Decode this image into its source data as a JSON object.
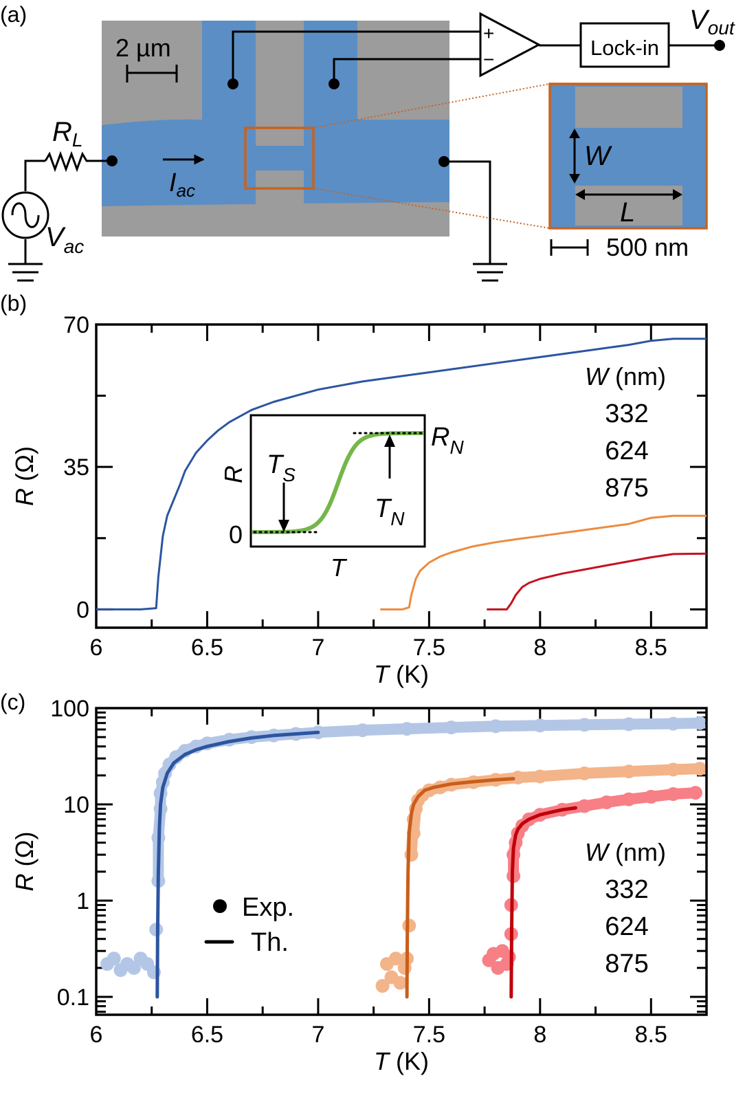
{
  "panel_labels": {
    "a": "(a)",
    "b": "(b)",
    "c": "(c)"
  },
  "colors": {
    "w332": "#2c55a0",
    "w624": "#ee8a3d",
    "w875": "#c4121f",
    "w332_exp": "#b3c6e6",
    "w624_exp": "#f3b489",
    "w875_exp": "#f77f86",
    "w624_th": "#c95e1a",
    "w875_th": "#c0000a",
    "sem_blue": "#5b8ec4",
    "sem_gray": "#9c9c9c",
    "highlight": "#c8621f",
    "inset_curve": "#6db33f"
  },
  "schematic": {
    "scale_bar_main": "2 µm",
    "scale_bar_inset": "500 nm",
    "resistor_label": "R",
    "resistor_sub": "L",
    "current_label": "I",
    "current_sub": "ac",
    "source_label": "V",
    "source_sub": "ac",
    "output_label": "V",
    "output_sub": "out",
    "lockin_label": "Lock-in",
    "amp_plus": "+",
    "amp_minus": "−",
    "width_label": "W",
    "length_label": "L"
  },
  "chart_data": [
    {
      "id": "b",
      "type": "line",
      "title": "",
      "xlabel": "T (K)",
      "xlabel_var": "T",
      "xlabel_unit": "(K)",
      "ylabel": "R (Ω)",
      "ylabel_var": "R",
      "ylabel_unit": "(Ω)",
      "xlim": [
        6,
        8.75
      ],
      "ylim": [
        -4.5,
        70
      ],
      "yscale": "linear",
      "xticks": [
        6,
        6.5,
        7,
        7.5,
        8,
        8.5
      ],
      "xtick_labels": [
        "6",
        "6.5",
        "7",
        "7.5",
        "8",
        "8.5"
      ],
      "xminor": [
        6.25,
        6.75,
        7.25,
        7.75,
        8.25
      ],
      "yticks": [
        0,
        35,
        70
      ],
      "ytick_labels": [
        "0",
        "35",
        "70"
      ],
      "yminor": [
        17.5,
        52.5
      ],
      "legend": {
        "title_var": "W",
        "title_unit": "(nm)",
        "placement": "right",
        "entries": [
          "332",
          "624",
          "875"
        ]
      },
      "series": [
        {
          "name": "332",
          "color_key": "w332",
          "x": [
            6.0,
            6.2,
            6.27,
            6.28,
            6.3,
            6.32,
            6.35,
            6.38,
            6.4,
            6.45,
            6.5,
            6.55,
            6.6,
            6.7,
            6.8,
            6.9,
            7.0,
            7.2,
            7.4,
            7.6,
            7.8,
            8.0,
            8.2,
            8.4,
            8.5,
            8.6,
            8.75
          ],
          "y": [
            0.0,
            0.0,
            0.3,
            8,
            18,
            23,
            27,
            31,
            34,
            38.5,
            41.5,
            44,
            46,
            49,
            51,
            52.5,
            54,
            56,
            57.5,
            59,
            60.5,
            62,
            63.5,
            65,
            66,
            66.5,
            66.5
          ]
        },
        {
          "name": "624",
          "color_key": "w624",
          "x": [
            7.28,
            7.38,
            7.41,
            7.42,
            7.44,
            7.46,
            7.5,
            7.55,
            7.6,
            7.7,
            7.8,
            7.9,
            8.0,
            8.2,
            8.4,
            8.5,
            8.6,
            8.75
          ],
          "y": [
            0.0,
            0.0,
            0.5,
            3.5,
            7.5,
            9.5,
            11.5,
            13,
            14,
            15.5,
            16.5,
            17.3,
            18,
            19.5,
            21,
            22.5,
            23,
            23
          ]
        },
        {
          "name": "875",
          "color_key": "w875",
          "x": [
            7.76,
            7.85,
            7.87,
            7.89,
            7.92,
            7.95,
            8.0,
            8.1,
            8.2,
            8.3,
            8.4,
            8.5,
            8.6,
            8.75
          ],
          "y": [
            0.0,
            0.0,
            1.5,
            3.5,
            5.5,
            6.5,
            7.5,
            8.8,
            9.8,
            10.8,
            11.8,
            12.8,
            13.6,
            13.7
          ]
        }
      ],
      "inset": {
        "xlabel": "T",
        "ylabel": "R",
        "zero_label": "0",
        "rn_label": "R",
        "rn_sub": "N",
        "ts_label": "T",
        "ts_sub": "S",
        "tn_label": "T",
        "tn_sub": "N",
        "curve": "sigmoid"
      }
    },
    {
      "id": "c",
      "type": "scatter",
      "title": "",
      "xlabel": "T (K)",
      "xlabel_var": "T",
      "xlabel_unit": "(K)",
      "ylabel": "R (Ω)",
      "ylabel_var": "R",
      "ylabel_unit": "(Ω)",
      "xlim": [
        6,
        8.75
      ],
      "ylim": [
        0.08,
        100
      ],
      "yscale": "log",
      "xticks": [
        6,
        6.5,
        7,
        7.5,
        8,
        8.5
      ],
      "xtick_labels": [
        "6",
        "6.5",
        "7",
        "7.5",
        "8",
        "8.5"
      ],
      "xminor": [
        6.25,
        6.75,
        7.25,
        7.75,
        8.25
      ],
      "yticks": [
        0.1,
        1,
        10,
        100
      ],
      "ytick_labels": [
        "0.1",
        "1",
        "10",
        "100"
      ],
      "legend": {
        "markers": [
          {
            "symbol": "dot",
            "label": "Exp."
          },
          {
            "symbol": "line",
            "label": "Th."
          }
        ],
        "title_var": "W",
        "title_unit": "(nm)",
        "placement": "lower-right",
        "entries": [
          "332",
          "624",
          "875"
        ]
      },
      "series": [
        {
          "name": "332 Exp.",
          "kind": "exp",
          "color_key": "w332_exp",
          "x": [
            6.05,
            6.08,
            6.11,
            6.14,
            6.17,
            6.2,
            6.23,
            6.26,
            6.27,
            6.28,
            6.28,
            6.29,
            6.29,
            6.3,
            6.31,
            6.33,
            6.36,
            6.4,
            6.45,
            6.5,
            6.6,
            6.7,
            6.8,
            6.9,
            7.0,
            7.2,
            7.4,
            7.6,
            7.8,
            8.0,
            8.2,
            8.4,
            8.6,
            8.72
          ],
          "y": [
            0.22,
            0.25,
            0.19,
            0.22,
            0.2,
            0.25,
            0.22,
            0.18,
            0.5,
            1.6,
            4.5,
            9,
            13,
            17,
            21,
            26,
            31,
            36,
            40,
            43,
            47,
            50,
            52,
            54,
            56,
            59,
            61,
            63,
            65,
            66,
            67,
            68,
            69,
            70
          ]
        },
        {
          "name": "332 Th.",
          "kind": "th",
          "color_key": "w332",
          "x": [
            6.275,
            6.277,
            6.28,
            6.285,
            6.29,
            6.3,
            6.32,
            6.35,
            6.4,
            6.45,
            6.5,
            6.6,
            6.7,
            6.8,
            6.9,
            7.0
          ],
          "y": [
            0.1,
            0.5,
            2,
            6,
            10,
            15,
            21,
            27,
            33,
            37,
            40,
            45,
            49,
            52,
            54,
            56
          ]
        },
        {
          "name": "624 Exp.",
          "kind": "exp",
          "color_key": "w624_exp",
          "x": [
            7.29,
            7.31,
            7.33,
            7.35,
            7.37,
            7.39,
            7.4,
            7.41,
            7.42,
            7.43,
            7.43,
            7.44,
            7.45,
            7.47,
            7.5,
            7.55,
            7.6,
            7.7,
            7.8,
            7.9,
            8.0,
            8.2,
            8.4,
            8.6,
            8.72
          ],
          "y": [
            0.13,
            0.22,
            0.16,
            0.25,
            0.14,
            0.2,
            0.25,
            0.55,
            3,
            7,
            5,
            9,
            11,
            12.5,
            14,
            15,
            16,
            17,
            18,
            19,
            19.5,
            21,
            22,
            23,
            23.5
          ]
        },
        {
          "name": "624 Th.",
          "kind": "th",
          "color_key": "w624_th",
          "x": [
            7.4,
            7.402,
            7.405,
            7.41,
            7.42,
            7.43,
            7.45,
            7.48,
            7.52,
            7.6,
            7.7,
            7.8,
            7.88
          ],
          "y": [
            0.1,
            0.5,
            2,
            5,
            8,
            10,
            12,
            14,
            15,
            16.3,
            17.2,
            18,
            18.5
          ]
        },
        {
          "name": "875 Exp.",
          "kind": "exp",
          "color_key": "w875_exp",
          "x": [
            7.77,
            7.79,
            7.81,
            7.83,
            7.85,
            7.86,
            7.87,
            7.87,
            7.88,
            7.88,
            7.89,
            7.9,
            7.92,
            7.95,
            8.0,
            8.1,
            8.2,
            8.3,
            8.4,
            8.5,
            8.6,
            8.7
          ],
          "y": [
            0.24,
            0.28,
            0.2,
            0.3,
            0.22,
            0.26,
            0.45,
            0.9,
            1.8,
            3,
            4,
            5,
            6,
            7,
            7.8,
            8.8,
            9.6,
            10.5,
            11.3,
            12,
            12.8,
            13.2
          ]
        },
        {
          "name": "875 Th.",
          "kind": "th",
          "color_key": "w875_th",
          "x": [
            7.87,
            7.872,
            7.875,
            7.88,
            7.89,
            7.9,
            7.92,
            7.95,
            8.0,
            8.05,
            8.1,
            8.16
          ],
          "y": [
            0.1,
            0.5,
            2,
            3.5,
            4.8,
            5.5,
            6.3,
            7,
            7.8,
            8.3,
            8.8,
            9.2
          ]
        }
      ]
    }
  ]
}
